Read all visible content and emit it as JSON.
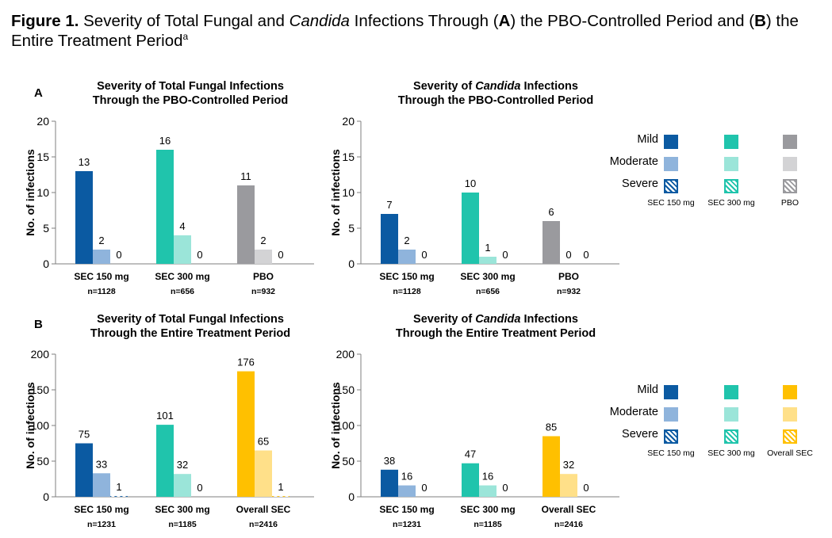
{
  "figure_title": {
    "label": "Figure 1.",
    "text_1": " Severity of Total Fungal and ",
    "italic_1": "Candida",
    "text_2": " Infections Through (",
    "bold_a": "A",
    "text_3": ") the PBO-Controlled Period and (",
    "bold_b": "B",
    "text_4": ") the Entire Treatment Period",
    "superscript": "a"
  },
  "panels": {
    "a": "A",
    "b": "B"
  },
  "colors": {
    "sec150": [
      "#0b5aa2",
      "#8fb4dc",
      "#0b5aa2"
    ],
    "sec300": [
      "#20c4ac",
      "#9be5d9",
      "#20c4ac"
    ],
    "pbo": [
      "#9a9a9e",
      "#d3d3d5",
      "#9a9a9e"
    ],
    "overall": [
      "#ffc000",
      "#ffe089",
      "#ffc000"
    ]
  },
  "legends": [
    {
      "rows": [
        "Mild",
        "Moderate",
        "Severe"
      ],
      "groups": [
        "SEC 150 mg",
        "SEC 300 mg",
        "PBO"
      ],
      "group_keys": [
        "sec150",
        "sec300",
        "pbo"
      ]
    },
    {
      "rows": [
        "Mild",
        "Moderate",
        "Severe"
      ],
      "groups": [
        "SEC 150 mg",
        "SEC 300 mg",
        "Overall SEC"
      ],
      "group_keys": [
        "sec150",
        "sec300",
        "overall"
      ]
    }
  ],
  "chart_data": [
    {
      "type": "bar",
      "title_lines": [
        "Severity of Total Fungal Infections",
        "Through the PBO-Controlled Period"
      ],
      "ylabel": "No. of infections",
      "ylim": [
        0,
        20
      ],
      "yticks": [
        0,
        5,
        10,
        15,
        20
      ],
      "categories": [
        "SEC 150 mg",
        "SEC 300 mg",
        "PBO"
      ],
      "category_n": [
        "n=1128",
        "n=656",
        "n=932"
      ],
      "category_colors": [
        "sec150",
        "sec300",
        "pbo"
      ],
      "series": [
        {
          "name": "Mild",
          "values": [
            13,
            16,
            11
          ]
        },
        {
          "name": "Moderate",
          "values": [
            2,
            4,
            2
          ]
        },
        {
          "name": "Severe",
          "values": [
            0,
            0,
            0
          ]
        }
      ]
    },
    {
      "type": "bar",
      "title_lines": [
        "Severity of |Candida| Infections",
        "Through the PBO-Controlled Period"
      ],
      "ylabel": "No. of infections",
      "ylim": [
        0,
        20
      ],
      "yticks": [
        0,
        5,
        10,
        15,
        20
      ],
      "categories": [
        "SEC 150 mg",
        "SEC 300 mg",
        "PBO"
      ],
      "category_n": [
        "n=1128",
        "n=656",
        "n=932"
      ],
      "category_colors": [
        "sec150",
        "sec300",
        "pbo"
      ],
      "series": [
        {
          "name": "Mild",
          "values": [
            7,
            10,
            6
          ]
        },
        {
          "name": "Moderate",
          "values": [
            2,
            1,
            0
          ]
        },
        {
          "name": "Severe",
          "values": [
            0,
            0,
            0
          ]
        }
      ]
    },
    {
      "type": "bar",
      "title_lines": [
        "Severity of Total Fungal Infections",
        "Through the Entire Treatment Period"
      ],
      "ylabel": "No. of infections",
      "ylim": [
        0,
        200
      ],
      "yticks": [
        0,
        50,
        100,
        150,
        200
      ],
      "categories": [
        "SEC 150 mg",
        "SEC 300 mg",
        "Overall SEC"
      ],
      "category_n": [
        "n=1231",
        "n=1185",
        "n=2416"
      ],
      "category_colors": [
        "sec150",
        "sec300",
        "overall"
      ],
      "series": [
        {
          "name": "Mild",
          "values": [
            75,
            101,
            176
          ]
        },
        {
          "name": "Moderate",
          "values": [
            33,
            32,
            65
          ]
        },
        {
          "name": "Severe",
          "values": [
            1,
            0,
            1
          ]
        }
      ]
    },
    {
      "type": "bar",
      "title_lines": [
        "Severity of |Candida| Infections",
        "Through the Entire Treatment Period"
      ],
      "ylabel": "No. of infections",
      "ylim": [
        0,
        200
      ],
      "yticks": [
        0,
        50,
        100,
        150,
        200
      ],
      "categories": [
        "SEC 150 mg",
        "SEC 300 mg",
        "Overall SEC"
      ],
      "category_n": [
        "n=1231",
        "n=1185",
        "n=2416"
      ],
      "category_colors": [
        "sec150",
        "sec300",
        "overall"
      ],
      "series": [
        {
          "name": "Mild",
          "values": [
            38,
            47,
            85
          ]
        },
        {
          "name": "Moderate",
          "values": [
            16,
            16,
            32
          ]
        },
        {
          "name": "Severe",
          "values": [
            0,
            0,
            0
          ]
        }
      ]
    }
  ]
}
